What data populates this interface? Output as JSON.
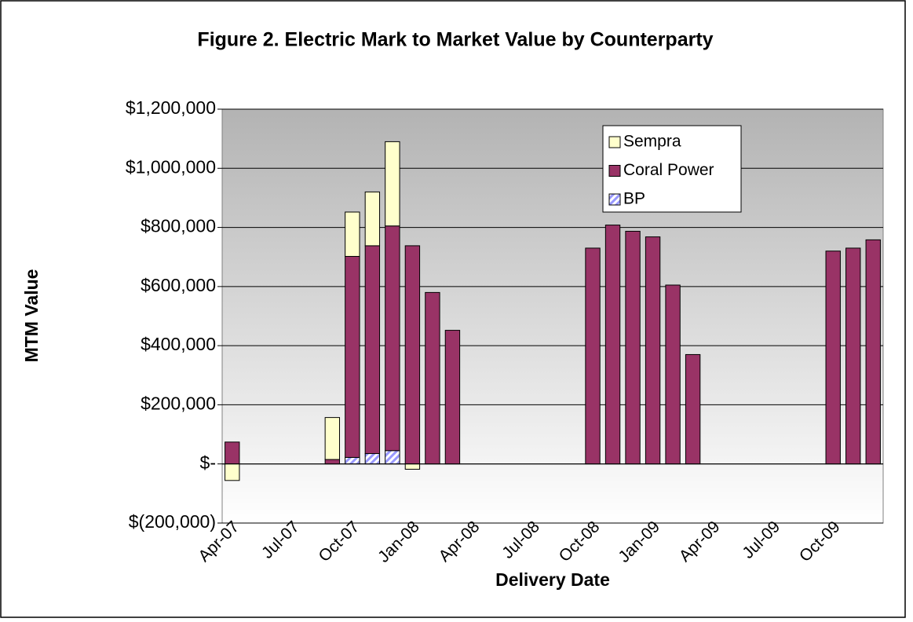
{
  "chart_data": {
    "type": "stacked_bar",
    "title": "Figure 2.  Electric Mark to Market Value by Counterparty",
    "x_label": "Delivery Date",
    "y_label": "MTM Value",
    "categories": [
      "Apr-07",
      null,
      null,
      "Jul-07",
      null,
      null,
      "Oct-07",
      null,
      null,
      "Jan-08",
      null,
      null,
      "Apr-08",
      null,
      null,
      "Jul-08",
      null,
      null,
      "Oct-08",
      null,
      null,
      "Jan-09",
      null,
      null,
      "Apr-09",
      null,
      null,
      "Jul-09",
      null,
      null,
      "Oct-09",
      null,
      null
    ],
    "series": [
      {
        "name": "BP",
        "color": "#9999ff",
        "pattern": "hatch",
        "values": [
          null,
          null,
          null,
          null,
          null,
          null,
          22000,
          35000,
          45000,
          null,
          null,
          null,
          null,
          null,
          null,
          null,
          null,
          null,
          null,
          null,
          null,
          null,
          null,
          null,
          null,
          null,
          null,
          null,
          null,
          null,
          null,
          null,
          null
        ]
      },
      {
        "name": "Coral Power",
        "color": "#993366",
        "values": [
          74000,
          null,
          null,
          null,
          null,
          15000,
          680000,
          703000,
          760000,
          738000,
          580000,
          452000,
          null,
          null,
          null,
          null,
          null,
          null,
          730000,
          808000,
          787000,
          768000,
          605000,
          370000,
          null,
          null,
          null,
          null,
          null,
          null,
          720000,
          730000,
          758000
        ]
      },
      {
        "name": "Sempra",
        "color": "#ffffcc",
        "values": [
          -56000,
          null,
          null,
          null,
          null,
          142000,
          150000,
          182000,
          285000,
          -18000,
          null,
          null,
          null,
          null,
          null,
          null,
          null,
          null,
          null,
          null,
          null,
          null,
          null,
          null,
          null,
          null,
          null,
          null,
          null,
          null,
          null,
          null,
          null
        ]
      }
    ],
    "ylim": [
      -200000,
      1200000
    ],
    "yticks": [
      {
        "value": -200000,
        "label": "$(200,000)"
      },
      {
        "value": 0,
        "label": "$-"
      },
      {
        "value": 200000,
        "label": "$200,000"
      },
      {
        "value": 400000,
        "label": "$400,000"
      },
      {
        "value": 600000,
        "label": "$600,000"
      },
      {
        "value": 800000,
        "label": "$800,000"
      },
      {
        "value": 1000000,
        "label": "$1,000,000"
      },
      {
        "value": 1200000,
        "label": "$1,200,000"
      }
    ],
    "grid": true,
    "legend": "top-right"
  }
}
